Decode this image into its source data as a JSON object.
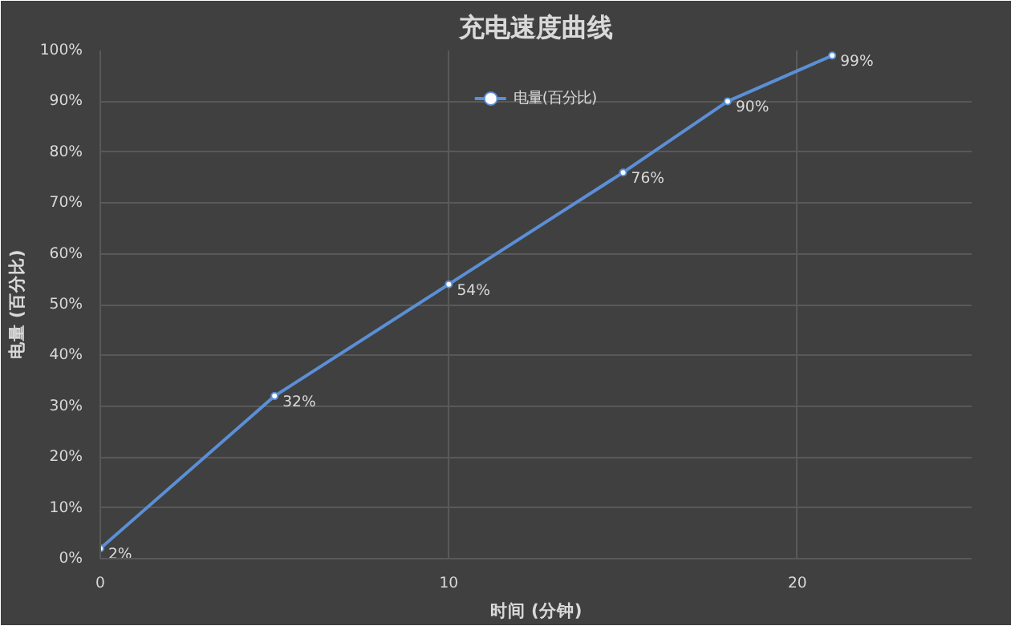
{
  "chart_data": {
    "type": "line",
    "title": "充电速度曲线",
    "xlabel": "时间 (分钟)",
    "ylabel": "电量 (百分比)",
    "x": [
      0,
      5,
      10,
      15,
      18,
      21
    ],
    "series": [
      {
        "name": "电量(百分比)",
        "color": "#5b8fd6",
        "values": [
          2,
          32,
          54,
          76,
          90,
          99
        ],
        "value_labels": [
          "2%",
          "32%",
          "54%",
          "76%",
          "90%",
          "99%"
        ]
      }
    ],
    "xlim": [
      0,
      25
    ],
    "xticks": [
      0,
      10,
      20
    ],
    "ylim": [
      0,
      100
    ],
    "yticks": [
      {
        "value": 0,
        "label": "0%"
      },
      {
        "value": 10,
        "label": "10%"
      },
      {
        "value": 20,
        "label": "20%"
      },
      {
        "value": 30,
        "label": "30%"
      },
      {
        "value": 40,
        "label": "40%"
      },
      {
        "value": 50,
        "label": "50%"
      },
      {
        "value": 60,
        "label": "60%"
      },
      {
        "value": 70,
        "label": "70%"
      },
      {
        "value": 80,
        "label": "80%"
      },
      {
        "value": 90,
        "label": "90%"
      },
      {
        "value": 100,
        "label": "100%"
      }
    ],
    "grid": true,
    "legend": "top",
    "marker": "circle",
    "line_style": "solid"
  }
}
